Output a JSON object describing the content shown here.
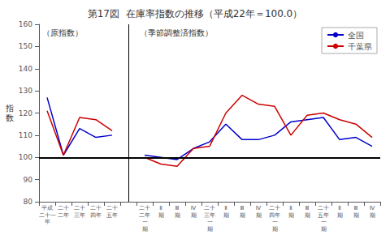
{
  "chart_data": {
    "type": "line",
    "title": "第17図  在庫率指数の推移（平成22年＝100.0）",
    "ylabel": "指\n数",
    "annotations": [
      "（原指数）",
      "（季節調整済指数）"
    ],
    "categories": [
      "平成\n二十一\n年",
      "二十\n二年",
      "二十\n三年",
      "二十\n四年",
      "二十\n五年",
      null,
      "二十\n二年\n一\n期",
      "Ⅱ\n期",
      "Ⅲ\n期",
      "Ⅳ\n期",
      "二十\n三年\n一\n期",
      "Ⅱ\n期",
      "Ⅲ\n期",
      "Ⅳ\n期",
      "二十\n四年\n一\n期",
      "Ⅱ\n期",
      "Ⅲ\n期",
      "二十\n五年\n一\n期",
      "Ⅱ\n期",
      "Ⅲ\n期",
      "Ⅳ\n期"
    ],
    "series": [
      {
        "name": "全国",
        "color": "#0000cc",
        "values": [
          127,
          101,
          113,
          109,
          110,
          null,
          101,
          100,
          99,
          104,
          107,
          115,
          108,
          108,
          110,
          116,
          117,
          118,
          108,
          109,
          105
        ]
      },
      {
        "name": "千葉県",
        "color": "#cc0000",
        "values": [
          121,
          101,
          118,
          117,
          112,
          null,
          100,
          97,
          96,
          104,
          105,
          120,
          128,
          124,
          123,
          110,
          119,
          120,
          117,
          115,
          109
        ]
      }
    ],
    "ylim": [
      80,
      160
    ],
    "yticks": [
      80,
      90,
      100,
      110,
      120,
      130,
      140,
      150,
      160
    ],
    "hline": 100,
    "grid": false,
    "legend": "upper right"
  }
}
